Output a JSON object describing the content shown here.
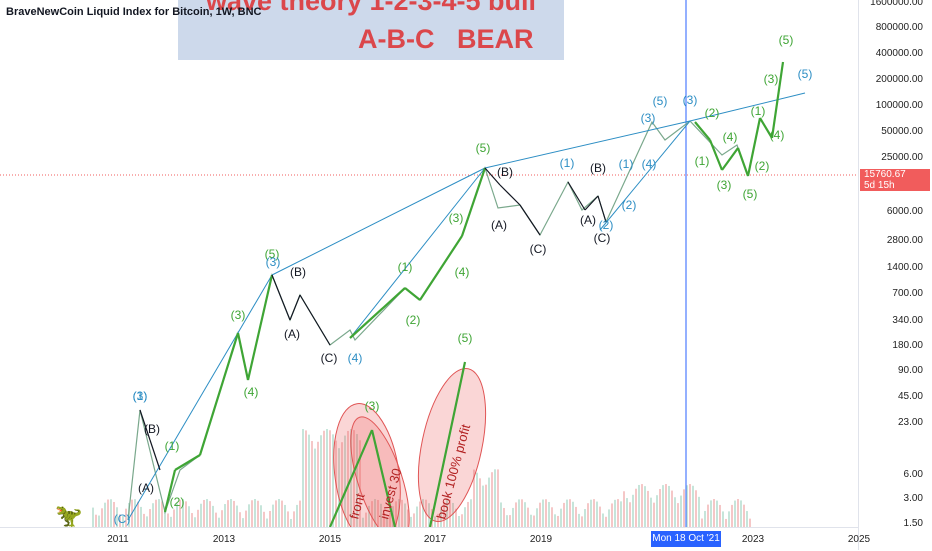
{
  "header": {
    "symbol_title": "BraveNewCoin Liquid Index for Bitcoin, 1W, BNC"
  },
  "banner": {
    "line1": "wave theory 1-2-3-4-5 bull",
    "line2": "A-B-C   BEAR"
  },
  "price_tag": {
    "price": "15760.67",
    "countdown": "5d 15h"
  },
  "crosshair": {
    "date_label": "Mon 18 Oct '21"
  },
  "colors": {
    "bull": "#3fa535",
    "bear": "#131722",
    "trend": "#2d8ec4",
    "banner_text": "#d8383c",
    "price_line": "#f15c5c",
    "crosshair": "#2962ff"
  },
  "logo_icon": "dinosaur-icon",
  "chart_data": {
    "type": "line",
    "y_scale": "log",
    "y_ticks": [
      "1600000.00",
      "800000.00",
      "400000.00",
      "200000.00",
      "100000.00",
      "50000.00",
      "25000.00",
      "12000.00",
      "6000.00",
      "2800.00",
      "1400.00",
      "700.00",
      "340.00",
      "180.00",
      "90.00",
      "45.00",
      "23.00",
      "6.00",
      "3.00",
      "1.50"
    ],
    "x_ticks": [
      "2011",
      "2013",
      "2015",
      "2017",
      "2019",
      "2023",
      "2025"
    ],
    "series": [
      {
        "values": [
          0.3,
          30,
          2,
          12,
          8,
          250,
          60,
          1100,
          300,
          900,
          200,
          450,
          250,
          1000,
          700,
          1300,
          2500,
          6000,
          20000,
          8000,
          3200,
          12000,
          5500,
          9000,
          3500,
          60000,
          30000,
          65000,
          20000,
          47000,
          15760
        ]
      }
    ],
    "wave_labels": [
      {
        "text": "(1)",
        "kind": "blue"
      },
      {
        "text": "(3)",
        "kind": "blue"
      },
      {
        "text": "(B)",
        "kind": "black"
      },
      {
        "text": "(A)",
        "kind": "black"
      },
      {
        "text": "(C)",
        "kind": "blue"
      },
      {
        "text": "(1)",
        "kind": "green"
      },
      {
        "text": "(2)",
        "kind": "green"
      },
      {
        "text": "(3)",
        "kind": "green"
      },
      {
        "text": "(4)",
        "kind": "green"
      },
      {
        "text": "(5)",
        "kind": "green"
      },
      {
        "text": "(3)",
        "kind": "blue"
      },
      {
        "text": "(B)",
        "kind": "black"
      },
      {
        "text": "(A)",
        "kind": "black"
      },
      {
        "text": "(C)",
        "kind": "black"
      },
      {
        "text": "(4)",
        "kind": "blue"
      },
      {
        "text": "(1)",
        "kind": "green"
      },
      {
        "text": "(2)",
        "kind": "green"
      },
      {
        "text": "(3)",
        "kind": "green"
      },
      {
        "text": "(4)",
        "kind": "green"
      },
      {
        "text": "(5)",
        "kind": "green"
      },
      {
        "text": "(B)",
        "kind": "black"
      },
      {
        "text": "(A)",
        "kind": "black"
      },
      {
        "text": "(C)",
        "kind": "black"
      },
      {
        "text": "(1)",
        "kind": "blue"
      },
      {
        "text": "(B)",
        "kind": "black"
      },
      {
        "text": "(A)",
        "kind": "black"
      },
      {
        "text": "(C)",
        "kind": "black"
      },
      {
        "text": "(2)",
        "kind": "blue"
      },
      {
        "text": "(1)",
        "kind": "blue"
      },
      {
        "text": "(2)",
        "kind": "blue"
      },
      {
        "text": "(4)",
        "kind": "blue"
      },
      {
        "text": "(3)",
        "kind": "blue"
      },
      {
        "text": "(5)",
        "kind": "blue"
      },
      {
        "text": "(3)",
        "kind": "blue"
      },
      {
        "text": "(2)",
        "kind": "green"
      },
      {
        "text": "(4)",
        "kind": "green"
      },
      {
        "text": "(1)",
        "kind": "green"
      },
      {
        "text": "(3)",
        "kind": "green"
      },
      {
        "text": "(5)",
        "kind": "green"
      },
      {
        "text": "(1)",
        "kind": "green"
      },
      {
        "text": "(2)",
        "kind": "green"
      },
      {
        "text": "(3)",
        "kind": "green"
      },
      {
        "text": "(4)",
        "kind": "green"
      },
      {
        "text": "(5)",
        "kind": "green"
      },
      {
        "text": "(5)",
        "kind": "blue"
      },
      {
        "text": "(3)",
        "kind": "green"
      },
      {
        "text": "(5)",
        "kind": "green"
      }
    ],
    "annotations": [
      "front",
      "invest 30",
      "book 100% profit"
    ]
  }
}
